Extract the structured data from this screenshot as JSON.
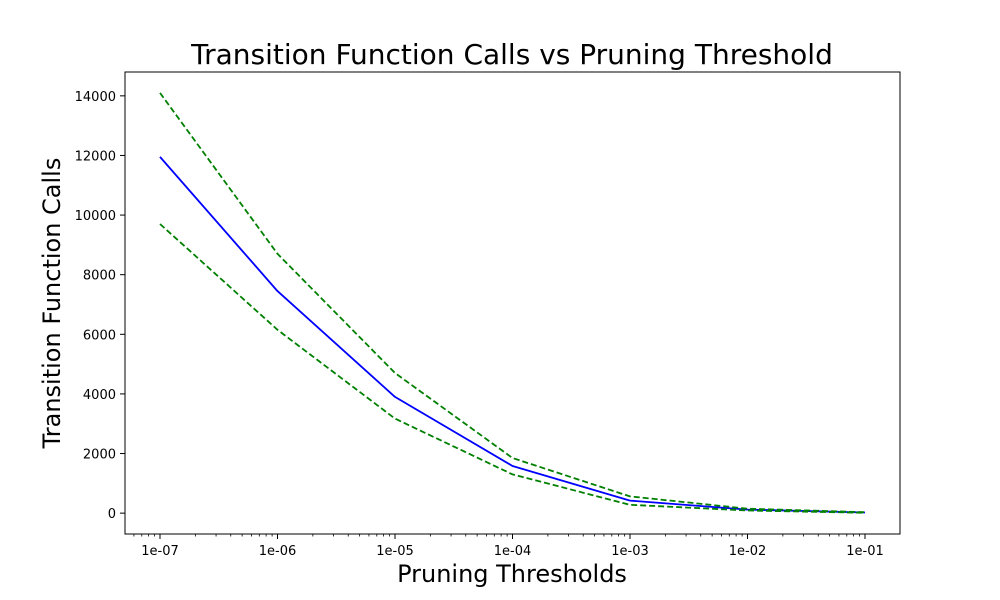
{
  "chart_data": {
    "type": "line",
    "title": "Transition Function Calls vs Pruning Threshold",
    "xlabel": "Pruning Thresholds",
    "ylabel": "Transition Function Calls",
    "x_scale": "log",
    "x": [
      1e-07,
      1e-06,
      1e-05,
      0.0001,
      0.001,
      0.01,
      0.1
    ],
    "x_tick_labels": [
      "1e-07",
      "1e-06",
      "1e-05",
      "1e-04",
      "1e-03",
      "1e-02",
      "1e-01"
    ],
    "y_ticks": [
      0,
      2000,
      4000,
      6000,
      8000,
      10000,
      12000,
      14000
    ],
    "ylim": [
      -700,
      14800
    ],
    "grid": false,
    "series": [
      {
        "values": [
          11950,
          7450,
          3900,
          1580,
          420,
          120,
          20
        ],
        "color": "#0000ff",
        "style": "solid"
      },
      {
        "values": [
          14100,
          8700,
          4700,
          1850,
          560,
          150,
          30
        ],
        "color": "#008000",
        "style": "dashed"
      },
      {
        "values": [
          9700,
          6150,
          3170,
          1300,
          280,
          90,
          10
        ],
        "color": "#008000",
        "style": "dashed"
      }
    ]
  }
}
